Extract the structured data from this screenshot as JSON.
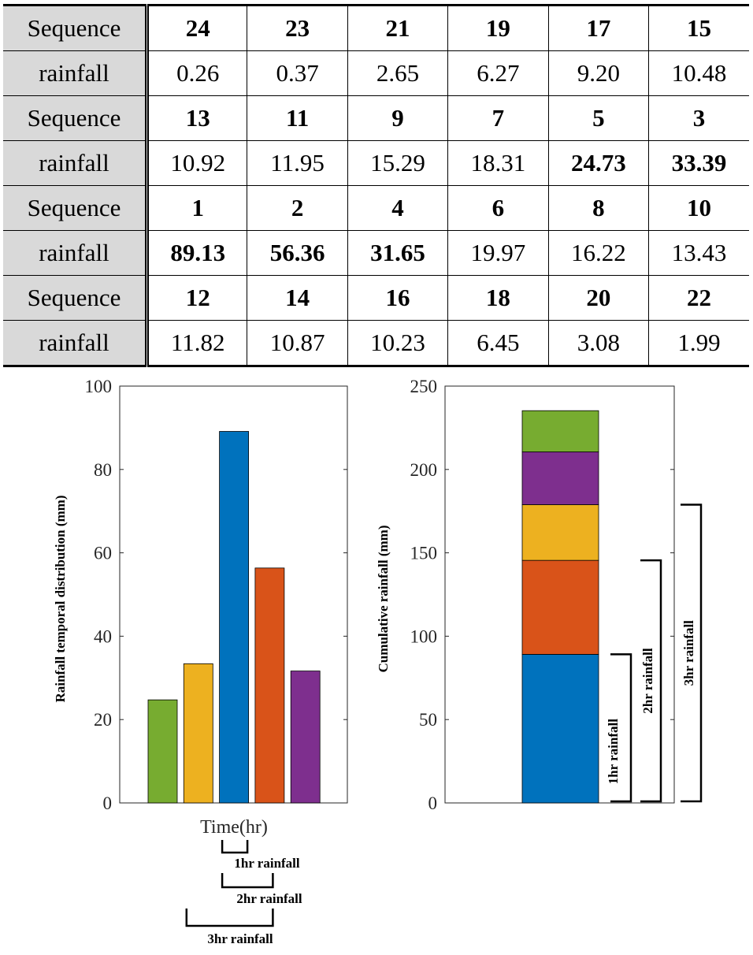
{
  "table": {
    "rows": [
      {
        "label": "Sequence",
        "cells": [
          {
            "v": "24",
            "b": true
          },
          {
            "v": "23",
            "b": true
          },
          {
            "v": "21",
            "b": true
          },
          {
            "v": "19",
            "b": true
          },
          {
            "v": "17",
            "b": true
          },
          {
            "v": "15",
            "b": true
          }
        ]
      },
      {
        "label": "rainfall",
        "cells": [
          {
            "v": "0.26",
            "b": false
          },
          {
            "v": "0.37",
            "b": false
          },
          {
            "v": "2.65",
            "b": false
          },
          {
            "v": "6.27",
            "b": false
          },
          {
            "v": "9.20",
            "b": false
          },
          {
            "v": "10.48",
            "b": false
          }
        ]
      },
      {
        "label": "Sequence",
        "cells": [
          {
            "v": "13",
            "b": true
          },
          {
            "v": "11",
            "b": true
          },
          {
            "v": "9",
            "b": true
          },
          {
            "v": "7",
            "b": true
          },
          {
            "v": "5",
            "b": true
          },
          {
            "v": "3",
            "b": true
          }
        ]
      },
      {
        "label": "rainfall",
        "cells": [
          {
            "v": "10.92",
            "b": false
          },
          {
            "v": "11.95",
            "b": false
          },
          {
            "v": "15.29",
            "b": false
          },
          {
            "v": "18.31",
            "b": false
          },
          {
            "v": "24.73",
            "b": true
          },
          {
            "v": "33.39",
            "b": true
          }
        ]
      },
      {
        "label": "Sequence",
        "cells": [
          {
            "v": "1",
            "b": true
          },
          {
            "v": "2",
            "b": true
          },
          {
            "v": "4",
            "b": true
          },
          {
            "v": "6",
            "b": true
          },
          {
            "v": "8",
            "b": true
          },
          {
            "v": "10",
            "b": true
          }
        ]
      },
      {
        "label": "rainfall",
        "cells": [
          {
            "v": "89.13",
            "b": true
          },
          {
            "v": "56.36",
            "b": true
          },
          {
            "v": "31.65",
            "b": true
          },
          {
            "v": "19.97",
            "b": false
          },
          {
            "v": "16.22",
            "b": false
          },
          {
            "v": "13.43",
            "b": false
          }
        ]
      },
      {
        "label": "Sequence",
        "cells": [
          {
            "v": "12",
            "b": true
          },
          {
            "v": "14",
            "b": true
          },
          {
            "v": "16",
            "b": true
          },
          {
            "v": "18",
            "b": true
          },
          {
            "v": "20",
            "b": true
          },
          {
            "v": "22",
            "b": true
          }
        ]
      },
      {
        "label": "rainfall",
        "cells": [
          {
            "v": "11.82",
            "b": false
          },
          {
            "v": "10.87",
            "b": false
          },
          {
            "v": "10.23",
            "b": false
          },
          {
            "v": "6.45",
            "b": false
          },
          {
            "v": "3.08",
            "b": false
          },
          {
            "v": "1.99",
            "b": false
          }
        ]
      }
    ]
  },
  "chart_data": [
    {
      "type": "bar",
      "title": "",
      "xlabel": "Time(hr)",
      "ylabel": "Rainfall temporal distribution (mm)",
      "ylim": [
        0,
        100
      ],
      "yticks": [
        "0",
        "20",
        "40",
        "60",
        "80",
        "100"
      ],
      "values": [
        24.73,
        33.39,
        89.13,
        56.36,
        31.65
      ],
      "colors": [
        "#77ac30",
        "#edb120",
        "#0072bd",
        "#d95319",
        "#7e2f8e"
      ],
      "annotations": [
        {
          "label": "1hr rainfall",
          "from_bar": 2,
          "to_bar": 2
        },
        {
          "label": "2hr rainfall",
          "from_bar": 2,
          "to_bar": 3
        },
        {
          "label": "3hr rainfall",
          "from_bar": 1,
          "to_bar": 3
        }
      ]
    },
    {
      "type": "bar",
      "stacked": true,
      "title": "",
      "xlabel": "",
      "ylabel": "Cumulative rainfall (mm)",
      "ylim": [
        0,
        250
      ],
      "yticks": [
        "0",
        "50",
        "100",
        "150",
        "200",
        "250"
      ],
      "segments": [
        {
          "value": 89.13,
          "color": "#0072bd"
        },
        {
          "value": 56.36,
          "color": "#d95319"
        },
        {
          "value": 33.39,
          "color": "#edb120"
        },
        {
          "value": 31.65,
          "color": "#7e2f8e"
        },
        {
          "value": 24.73,
          "color": "#77ac30"
        }
      ],
      "annotations": [
        {
          "label": "1hr rainfall",
          "range": [
            0,
            89.13
          ]
        },
        {
          "label": "2hr rainfall",
          "range": [
            0,
            145.49
          ]
        },
        {
          "label": "3hr rainfall",
          "range": [
            0,
            178.88
          ]
        }
      ]
    }
  ]
}
